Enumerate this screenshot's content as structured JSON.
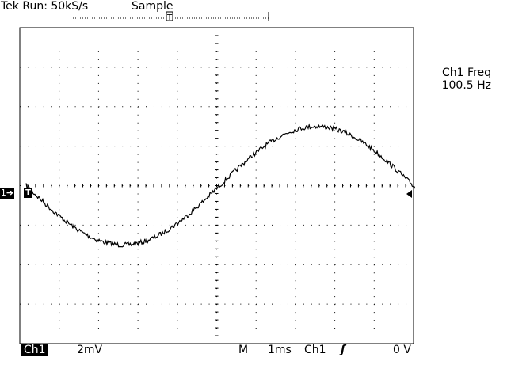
{
  "status": {
    "run": "Tek Run: 50kS/s",
    "mode": "Sample"
  },
  "readout": {
    "label": "Ch1 Freq",
    "value": "100.5 Hz"
  },
  "markers": {
    "channel": "1➔",
    "trigger": "T"
  },
  "bottom": {
    "channel": "Ch1",
    "volts_div": "2mV",
    "m": "M",
    "time_div": "1ms",
    "trigger_source": "Ch1",
    "trigger_slope": "ʃ",
    "trigger_level": "0 V"
  },
  "waveform": {
    "description": "sine",
    "frequency_hz": 100.5,
    "amplitude_divisions": 1.5,
    "phase_degrees": 180
  }
}
